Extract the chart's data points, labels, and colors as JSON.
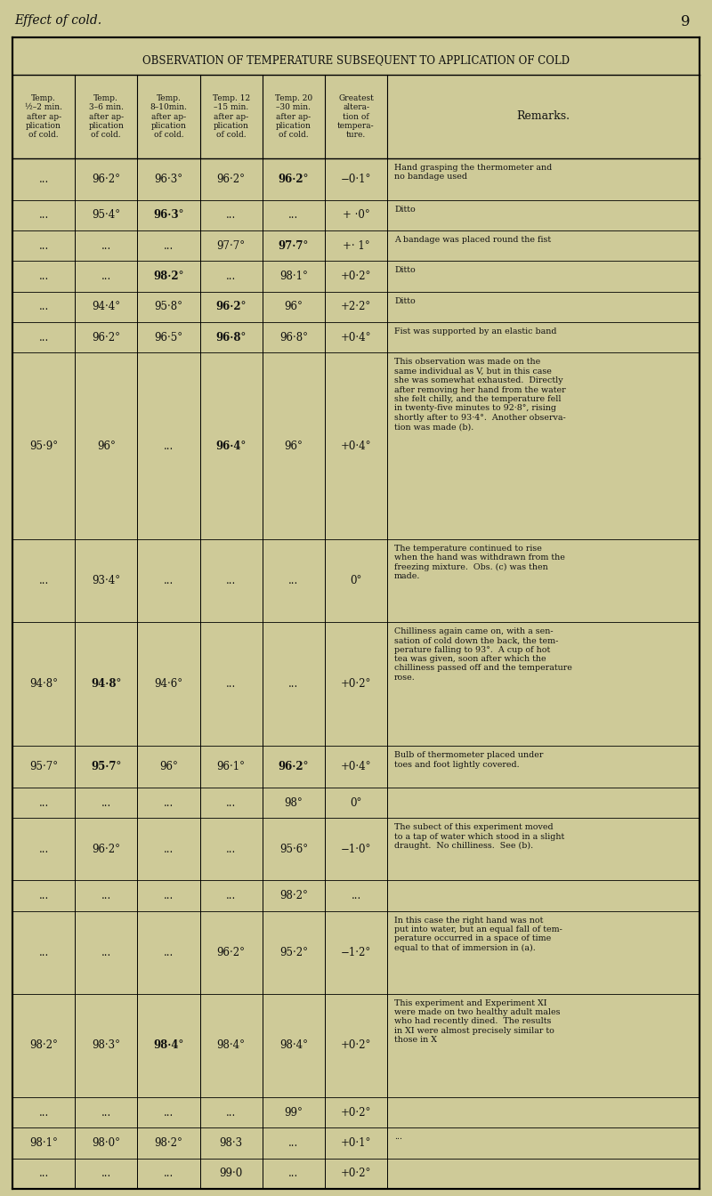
{
  "page_number": "9",
  "page_header": "Effect of cold.",
  "table_title": "OBSERVATION OF TEMPERATURE SUBSEQUENT TO APPLICATION OF COLD",
  "col_headers": [
    "Temp.\n½–2 min.\nafter ap-\nplication\nof cold.",
    "Temp.\n3–6 min.\nafter ap-\nplication\nof cold.",
    "Temp.\n8–10min.\nafter ap-\nplication\nof cold.",
    "Temp. 12\n–15 min.\nafter ap-\nplication\nof cold.",
    "Temp. 20\n–30 min.\nafter ap-\nplication\nof cold.",
    "Greatest\naltera-\ntion of\ntempera-\nture."
  ],
  "remarks_header": "Remarks.",
  "rows": [
    {
      "cols": [
        "...",
        "96·2°",
        "96·3°",
        "96·2°",
        "96·2°",
        "−0·1°"
      ],
      "col_bold": [
        false,
        false,
        false,
        false,
        true,
        false
      ],
      "remark": "Hand grasping the thermometer and\nno bandage used",
      "remark_lines": 2
    },
    {
      "cols": [
        "...",
        "95·4°",
        "96·3°",
        "...",
        "...",
        "+ ·0°"
      ],
      "col_bold": [
        false,
        false,
        true,
        false,
        false,
        false
      ],
      "remark": "Ditto",
      "remark_lines": 1
    },
    {
      "cols": [
        "...",
        "...",
        "...",
        "97·7°",
        "97·7°",
        "+· 1°"
      ],
      "col_bold": [
        false,
        false,
        false,
        false,
        true,
        false
      ],
      "remark": "A bandage was placed round the fist",
      "remark_lines": 1
    },
    {
      "cols": [
        "...",
        "...",
        "98·2°",
        "...",
        "98·1°",
        "+0·2°"
      ],
      "col_bold": [
        false,
        false,
        true,
        false,
        false,
        false
      ],
      "remark": "Ditto",
      "remark_lines": 1
    },
    {
      "cols": [
        "...",
        "94·4°",
        "95·8°",
        "96·2°",
        "96°",
        "+2·2°"
      ],
      "col_bold": [
        false,
        false,
        false,
        true,
        false,
        false
      ],
      "remark": "Ditto",
      "remark_lines": 1
    },
    {
      "cols": [
        "...",
        "96·2°",
        "96·5°",
        "96·8°",
        "96·8°",
        "+0·4°"
      ],
      "col_bold": [
        false,
        false,
        false,
        true,
        false,
        false
      ],
      "remark": "Fist was supported by an elastic band",
      "remark_lines": 1
    },
    {
      "cols": [
        "95·9°",
        "96°",
        "...",
        "96·4°",
        "96°",
        "+0·4°"
      ],
      "col_bold": [
        false,
        false,
        false,
        true,
        false,
        false
      ],
      "remark": "This observation was made on the\nsame individual as V, but in this case\nshe was somewhat exhausted.  Directly\nafter removing her hand from the water\nshe felt chilly, and the temperature fell\nin twenty-five minutes to 92·8°, rising\nshortly after to 93·4°.  Another observa-\ntion was made (b).",
      "remark_lines": 9
    },
    {
      "cols": [
        "...",
        "93·4°",
        "...",
        "...",
        "...",
        "0°"
      ],
      "col_bold": [
        false,
        false,
        false,
        false,
        false,
        false
      ],
      "remark": "The temperature continued to rise\nwhen the hand was withdrawn from the\nfreezing mixture.  Obs. (c) was then\nmade.",
      "remark_lines": 4
    },
    {
      "cols": [
        "94·8°",
        "94·8°",
        "94·6°",
        "...",
        "...",
        "+0·2°"
      ],
      "col_bold": [
        false,
        true,
        false,
        false,
        false,
        false
      ],
      "remark": "Chilliness again came on, with a sen-\nsation of cold down the back, the tem-\nperature falling to 93°.  A cup of hot\ntea was given, soon after which the\nchilliness passed off and the temperature\nrose.",
      "remark_lines": 6
    },
    {
      "cols": [
        "95·7°",
        "95·7°",
        "96°",
        "96·1°",
        "96·2°",
        "+0·4°"
      ],
      "col_bold": [
        false,
        true,
        false,
        false,
        true,
        false
      ],
      "remark": "Bulb of thermometer placed under\ntoes and foot lightly covered.",
      "remark_lines": 2
    },
    {
      "cols": [
        "...",
        "...",
        "...",
        "...",
        "98°",
        "0°"
      ],
      "col_bold": [
        false,
        false,
        false,
        false,
        false,
        false
      ],
      "remark": "",
      "remark_lines": 1
    },
    {
      "cols": [
        "...",
        "96·2°",
        "...",
        "...",
        "95·6°",
        "−1·0°"
      ],
      "col_bold": [
        false,
        false,
        false,
        false,
        false,
        false
      ],
      "remark": "The subect of this experiment moved\nto a tap of water which stood in a slight\ndraught.  No chilliness.  See (b).",
      "remark_lines": 3
    },
    {
      "cols": [
        "...",
        "...",
        "...",
        "...",
        "98·2°",
        "..."
      ],
      "col_bold": [
        false,
        false,
        false,
        false,
        false,
        false
      ],
      "remark": "",
      "remark_lines": 1
    },
    {
      "cols": [
        "...",
        "...",
        "...",
        "96·2°",
        "95·2°",
        "−1·2°"
      ],
      "col_bold": [
        false,
        false,
        false,
        false,
        false,
        false
      ],
      "remark": "In this case the right hand was not\nput into water, but an equal fall of tem-\nperature occurred in a space of time\nequal to that of immersion in (a).",
      "remark_lines": 4
    },
    {
      "cols": [
        "98·2°",
        "98·3°",
        "98·4°",
        "98·4°",
        "98·4°",
        "+0·2°"
      ],
      "col_bold": [
        false,
        false,
        true,
        false,
        false,
        false
      ],
      "remark": "This experiment and Experiment XI\nwere made on two healthy adult males\nwho had recently dined.  The results\nin XI were almost precisely similar to\nthose in X",
      "remark_lines": 5
    },
    {
      "cols": [
        "...",
        "...",
        "...",
        "...",
        "99°",
        "+0·2°"
      ],
      "col_bold": [
        false,
        false,
        false,
        false,
        false,
        false
      ],
      "remark": "",
      "remark_lines": 1
    },
    {
      "cols": [
        "98·1°",
        "98·0°",
        "98·2°",
        "98·3",
        "...",
        "+0·1°"
      ],
      "col_bold": [
        false,
        false,
        false,
        false,
        false,
        false
      ],
      "remark": "...",
      "remark_lines": 1
    },
    {
      "cols": [
        "...",
        "...",
        "...",
        "99·0",
        "...",
        "+0·2°"
      ],
      "col_bold": [
        false,
        false,
        false,
        false,
        false,
        false
      ],
      "remark": "",
      "remark_lines": 1
    }
  ],
  "bg_color": "#ceca98",
  "cell_bg": "#e8e4c0",
  "text_color": "#111111",
  "col_widths_rel": [
    1.0,
    1.0,
    1.0,
    1.0,
    1.0,
    1.0,
    5.0
  ]
}
